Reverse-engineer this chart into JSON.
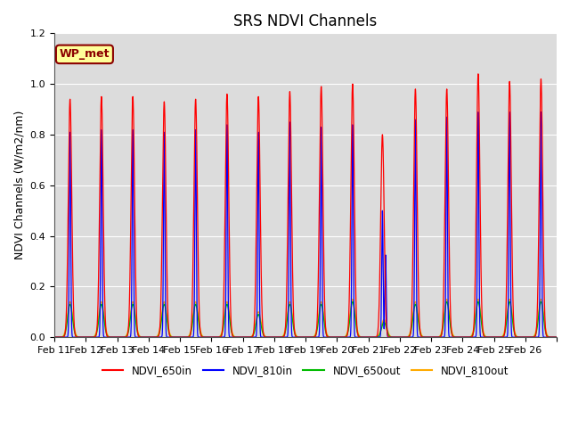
{
  "title": "SRS NDVI Channels",
  "ylabel": "NDVI Channels (W/m2/nm)",
  "ylim": [
    0.0,
    1.2
  ],
  "yticks": [
    0.0,
    0.2,
    0.4,
    0.6,
    0.8,
    1.0,
    1.2
  ],
  "plot_bg_color": "#dcdcdc",
  "legend_labels": [
    "NDVI_650in",
    "NDVI_810in",
    "NDVI_650out",
    "NDVI_810out"
  ],
  "legend_colors": [
    "#ff0000",
    "#0000ff",
    "#00bb00",
    "#ffaa00"
  ],
  "annotation_text": "WP_met",
  "annotation_color": "#8b0000",
  "annotation_bg": "#ffff99",
  "days": [
    "Feb 11",
    "Feb 12",
    "Feb 13",
    "Feb 14",
    "Feb 15",
    "Feb 16",
    "Feb 17",
    "Feb 18",
    "Feb 19",
    "Feb 20",
    "Feb 21",
    "Feb 22",
    "Feb 23",
    "Feb 24",
    "Feb 25",
    "Feb 26"
  ],
  "peak_650in": [
    0.94,
    0.95,
    0.95,
    0.93,
    0.94,
    0.96,
    0.95,
    0.97,
    0.99,
    1.0,
    0.8,
    0.98,
    0.98,
    1.04,
    1.01,
    1.02
  ],
  "peak_810in": [
    0.81,
    0.82,
    0.82,
    0.81,
    0.82,
    0.84,
    0.81,
    0.85,
    0.83,
    0.84,
    0.5,
    0.86,
    0.87,
    0.89,
    0.89,
    0.89
  ],
  "peak_650out": [
    0.13,
    0.13,
    0.13,
    0.13,
    0.13,
    0.13,
    0.09,
    0.13,
    0.13,
    0.14,
    0.06,
    0.13,
    0.14,
    0.14,
    0.14,
    0.14
  ],
  "peak_810out": [
    0.14,
    0.14,
    0.14,
    0.14,
    0.14,
    0.14,
    0.1,
    0.14,
    0.14,
    0.15,
    0.07,
    0.14,
    0.15,
    0.15,
    0.15,
    0.15
  ],
  "sigma_650in": 0.055,
  "sigma_810in": 0.022,
  "sigma_650out": 0.075,
  "sigma_810out": 0.085,
  "n_days": 16,
  "points_per_day": 500,
  "title_fontsize": 12,
  "tick_fontsize": 8,
  "label_fontsize": 9,
  "linewidth": 0.9
}
